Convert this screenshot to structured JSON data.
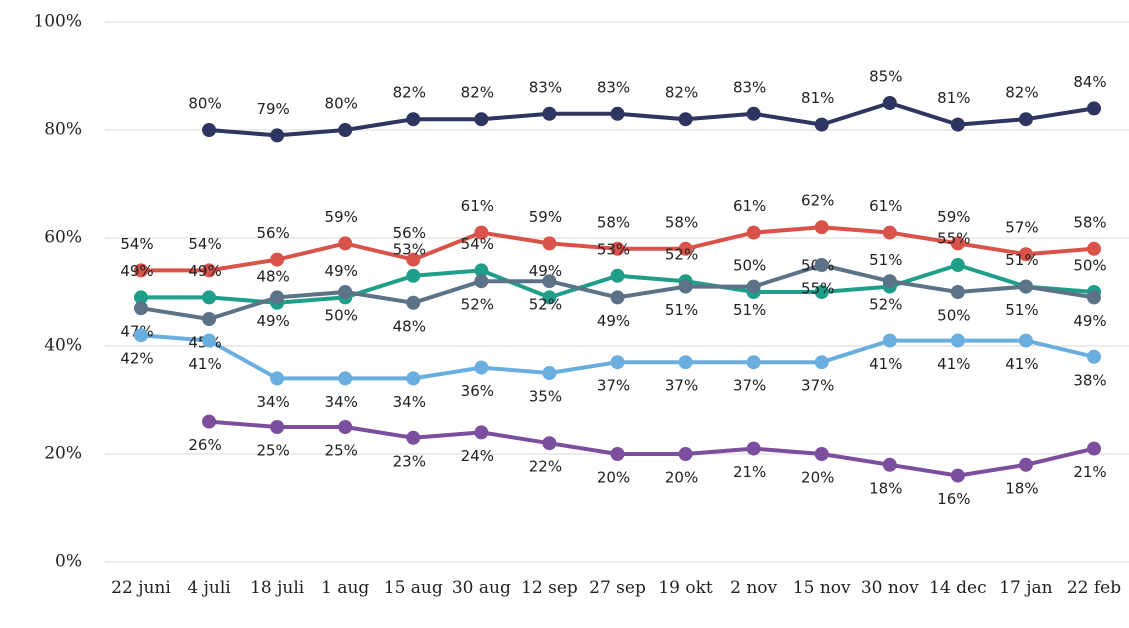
{
  "chart_data": {
    "type": "line",
    "categories": [
      "22 juni",
      "4 juli",
      "18 juli",
      "1 aug",
      "15 aug",
      "30 aug",
      "12 sep",
      "27 sep",
      "19 okt",
      "2 nov",
      "15 nov",
      "30 nov",
      "14 dec",
      "17 jan",
      "22 feb"
    ],
    "ylim": [
      0,
      100
    ],
    "yticks": [
      {
        "value": 0,
        "label": "0%"
      },
      {
        "value": 20,
        "label": "20%"
      },
      {
        "value": 40,
        "label": "40%"
      },
      {
        "value": 60,
        "label": "60%"
      },
      {
        "value": 80,
        "label": "80%"
      },
      {
        "value": 100,
        "label": "100%"
      }
    ],
    "grid": true,
    "series": [
      {
        "color": "#2e3560",
        "label_side": "above",
        "values": [
          null,
          80,
          79,
          80,
          82,
          82,
          83,
          83,
          82,
          83,
          81,
          85,
          81,
          82,
          84
        ],
        "value_labels": [
          null,
          "80%",
          "79%",
          "80%",
          "82%",
          "82%",
          "83%",
          "83%",
          "82%",
          "83%",
          "81%",
          "85%",
          "81%",
          "82%",
          "84%"
        ]
      },
      {
        "color": "#d9534a",
        "label_side": "above",
        "values": [
          54,
          54,
          56,
          59,
          56,
          61,
          59,
          58,
          58,
          61,
          62,
          61,
          59,
          57,
          58
        ],
        "value_labels": [
          "54%",
          "54%",
          "56%",
          "59%",
          "56%",
          "61%",
          "59%",
          "58%",
          "58%",
          "61%",
          "62%",
          "61%",
          "59%",
          "57%",
          "58%"
        ]
      },
      {
        "color": "#1f9e8a",
        "label_side": "above",
        "values": [
          49,
          49,
          48,
          49,
          53,
          54,
          49,
          53,
          52,
          50,
          50,
          51,
          55,
          51,
          50
        ],
        "value_labels": [
          "49%",
          "49%",
          "48%",
          "49%",
          "53%",
          "54%",
          "49%",
          "53%",
          "52%",
          "50%",
          "50%",
          "51%",
          "55%",
          "51%",
          "50%"
        ]
      },
      {
        "color": "#5b7287",
        "label_side": "below",
        "values": [
          47,
          45,
          49,
          50,
          48,
          52,
          52,
          49,
          51,
          51,
          55,
          52,
          50,
          51,
          49
        ],
        "value_labels": [
          "47%",
          "45%",
          "49%",
          "50%",
          "48%",
          "52%",
          "52%",
          "49%",
          "51%",
          "51%",
          "55%",
          "52%",
          "50%",
          "51%",
          "49%"
        ]
      },
      {
        "color": "#6aaee0",
        "label_side": "below",
        "values": [
          42,
          41,
          34,
          34,
          34,
          36,
          35,
          37,
          37,
          37,
          37,
          41,
          41,
          41,
          38
        ],
        "value_labels": [
          "42%",
          "41%",
          "34%",
          "34%",
          "34%",
          "36%",
          "35%",
          "37%",
          "37%",
          "37%",
          "37%",
          "41%",
          "41%",
          "41%",
          "38%"
        ]
      },
      {
        "color": "#7b4f9d",
        "label_side": "below",
        "values": [
          null,
          26,
          25,
          25,
          23,
          24,
          22,
          20,
          20,
          21,
          20,
          18,
          16,
          18,
          21
        ],
        "value_labels": [
          null,
          "26%",
          "25%",
          "25%",
          "23%",
          "24%",
          "22%",
          "20%",
          "20%",
          "21%",
          "20%",
          "18%",
          "16%",
          "18%",
          "21%"
        ]
      }
    ]
  }
}
